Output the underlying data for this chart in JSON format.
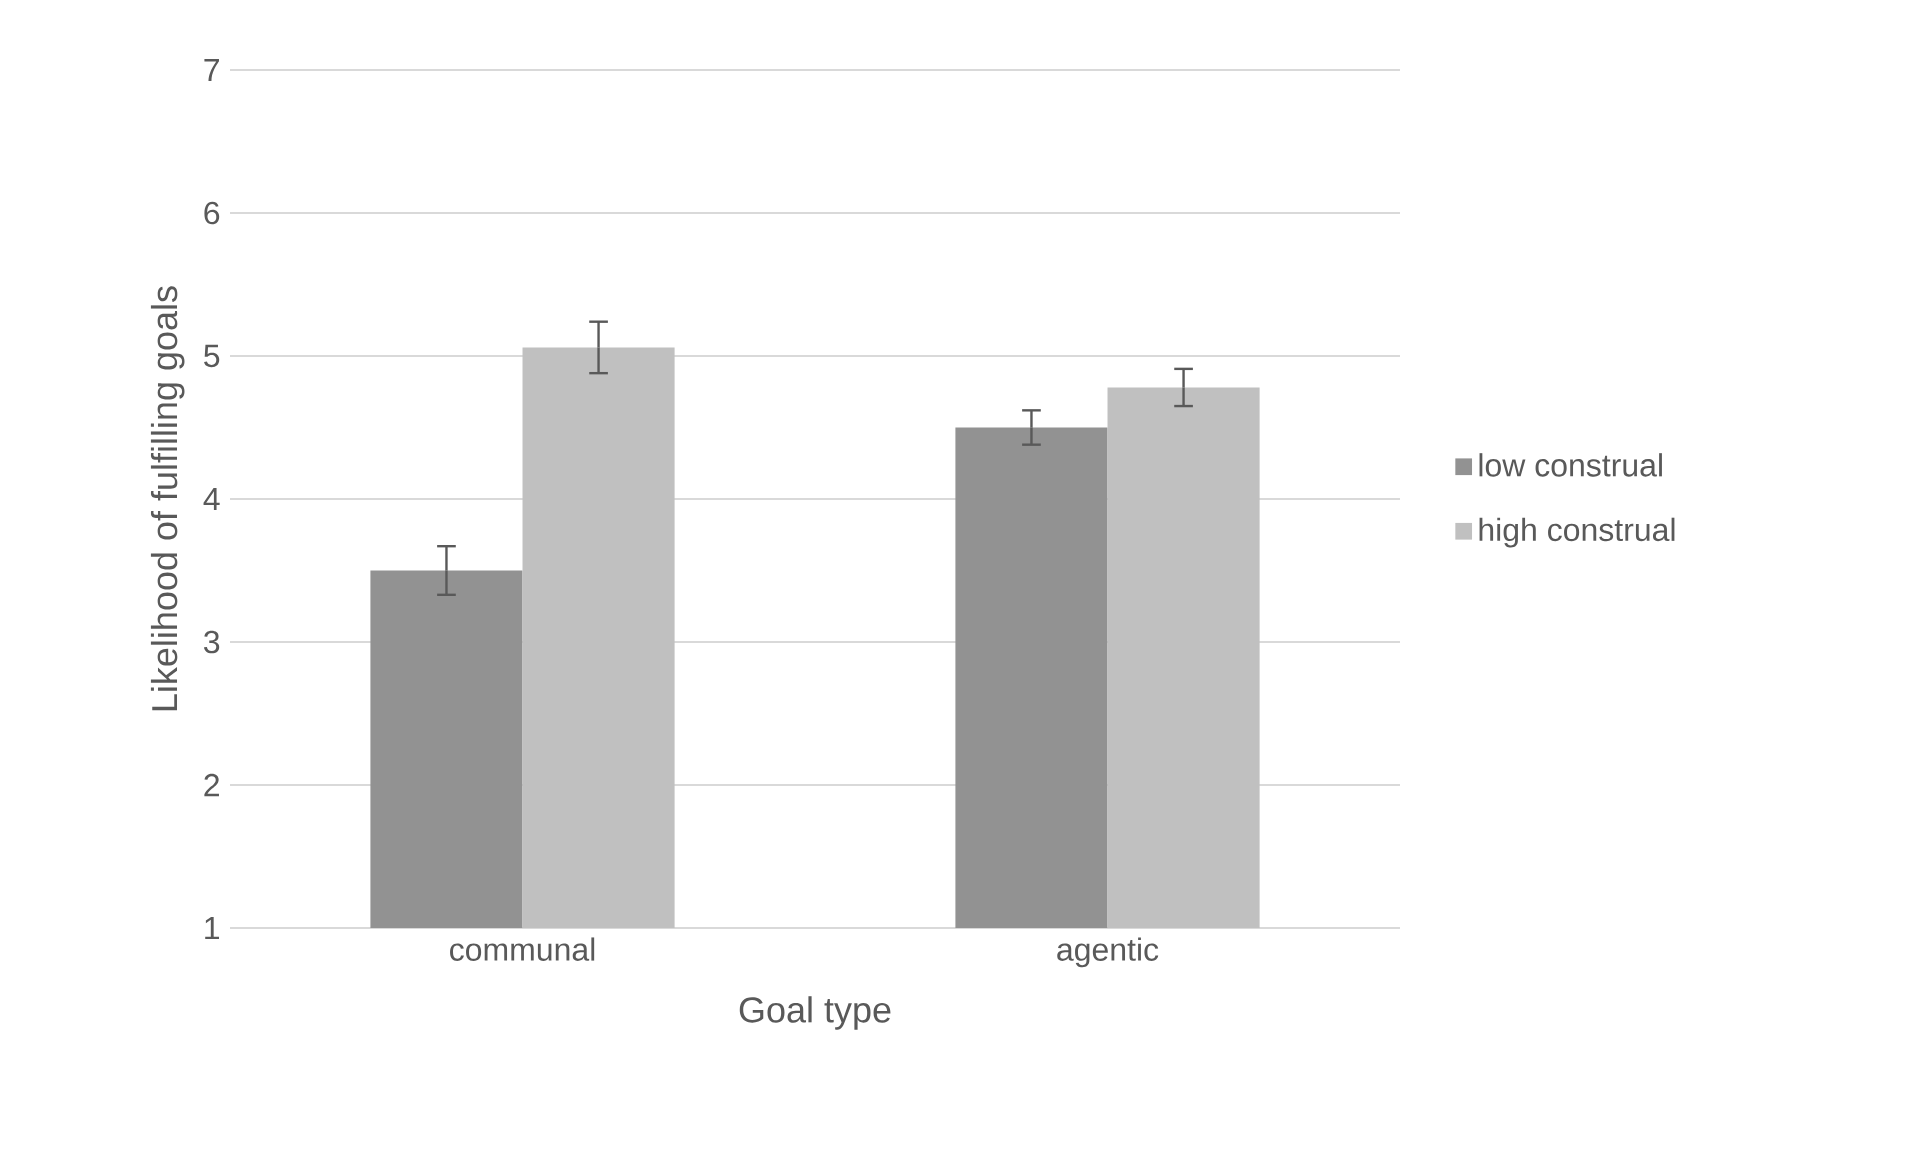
{
  "chart_data": {
    "type": "bar",
    "xlabel": "Goal type",
    "ylabel": "Likelihood of fulfilling goals",
    "categories": [
      "communal",
      "agentic"
    ],
    "series": [
      {
        "name": "low construal",
        "color": "#929292",
        "values": [
          3.5,
          4.5
        ],
        "errors": [
          0.17,
          0.12
        ]
      },
      {
        "name": "high construal",
        "color": "#c0c0c0",
        "values": [
          5.06,
          4.78
        ],
        "errors": [
          0.18,
          0.13
        ]
      }
    ],
    "ylim": [
      1,
      7
    ],
    "yticks": [
      1,
      2,
      3,
      4,
      5,
      6,
      7
    ],
    "grid": "y",
    "legend": "right"
  }
}
